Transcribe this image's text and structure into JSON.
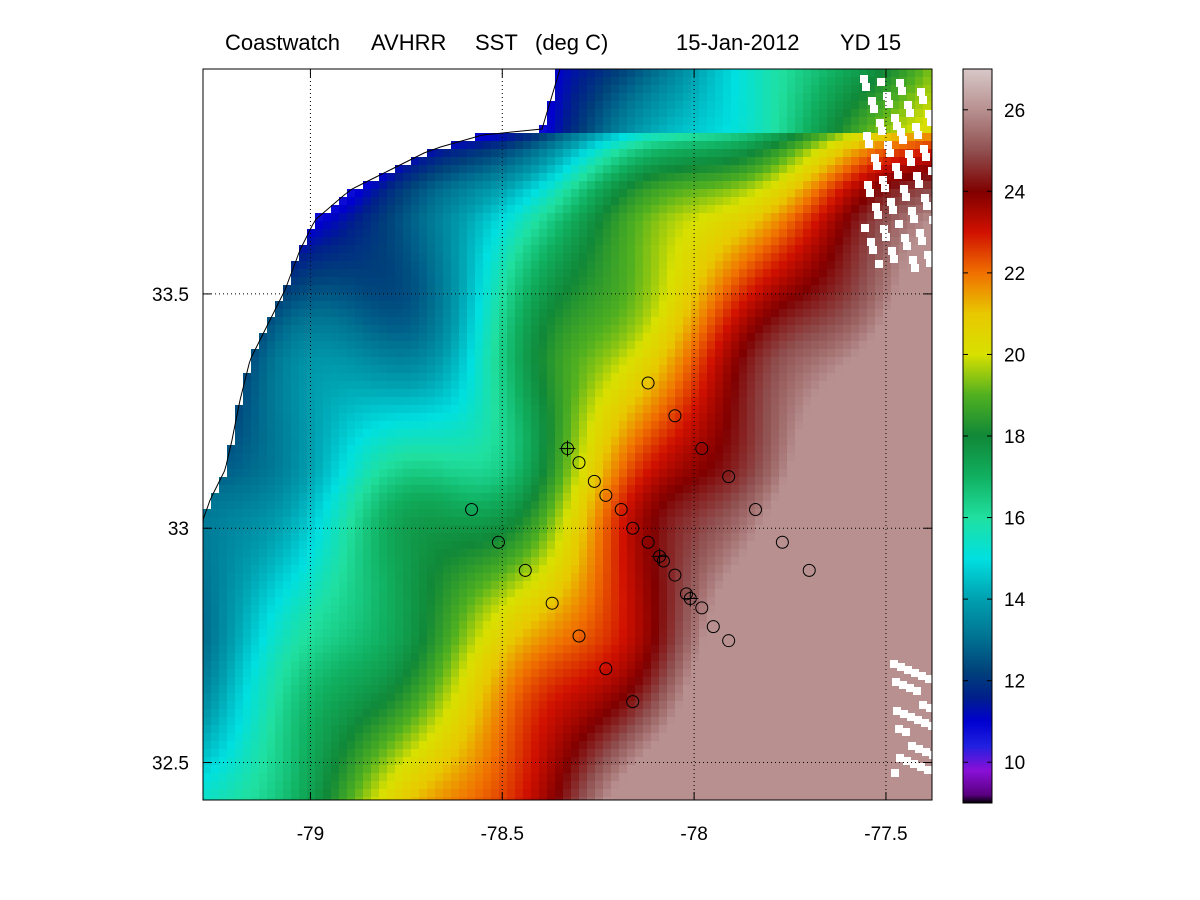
{
  "title": {
    "source": "Coastwatch",
    "sensor": "AVHRR",
    "product": "SST",
    "units": "(deg C)",
    "date": "15-Jan-2012",
    "yearday": "YD 15"
  },
  "colors": {
    "land": "#ffffff",
    "coastline": "#000000",
    "cloud": "#ffffff",
    "station_marker": "#000000",
    "frame": "#000000"
  },
  "chart_data": {
    "type": "heatmap",
    "title": "Coastwatch  AVHRR  SST  (deg C)        15-Jan-2012     YD 15",
    "xlabel": "",
    "ylabel": "",
    "xlim": [
      -79.28,
      -77.38
    ],
    "ylim": [
      32.42,
      33.98
    ],
    "x_ticks": [
      -79,
      -78.5,
      -78,
      -77.5
    ],
    "x_tick_labels": [
      "-79",
      "-78.5",
      "-78",
      "-77.5"
    ],
    "y_ticks": [
      32.5,
      33,
      33.5
    ],
    "y_tick_labels": [
      "32.5",
      "33",
      "33.5"
    ],
    "grid": "dotted",
    "colorbar": {
      "vmin": 9,
      "vmax": 27,
      "ticks": [
        10,
        12,
        14,
        16,
        18,
        20,
        22,
        24,
        26
      ],
      "tick_labels": [
        "10",
        "12",
        "14",
        "16",
        "18",
        "20",
        "22",
        "24",
        "26"
      ],
      "colormap": [
        [
          9.0,
          "#000000"
        ],
        [
          9.2,
          "#5a0080"
        ],
        [
          9.8,
          "#8a10d8"
        ],
        [
          10.4,
          "#2020e0"
        ],
        [
          11.0,
          "#0000d0"
        ],
        [
          11.6,
          "#00208a"
        ],
        [
          12.2,
          "#00407a"
        ],
        [
          13.0,
          "#006f90"
        ],
        [
          14.0,
          "#00a0b0"
        ],
        [
          15.0,
          "#00e0e0"
        ],
        [
          16.0,
          "#20e0a0"
        ],
        [
          17.0,
          "#10b060"
        ],
        [
          18.0,
          "#108838"
        ],
        [
          19.0,
          "#50b020"
        ],
        [
          20.0,
          "#d8e000"
        ],
        [
          21.0,
          "#e8c800"
        ],
        [
          22.0,
          "#f07000"
        ],
        [
          23.0,
          "#d01000"
        ],
        [
          24.0,
          "#800000"
        ],
        [
          25.0,
          "#905050"
        ],
        [
          26.0,
          "#b89090"
        ],
        [
          27.0,
          "#d8c8c8"
        ]
      ]
    },
    "stations": [
      {
        "lon": -78.12,
        "lat": 33.31,
        "marker": "circle"
      },
      {
        "lon": -78.05,
        "lat": 33.24,
        "marker": "circle"
      },
      {
        "lon": -77.98,
        "lat": 33.17,
        "marker": "circle"
      },
      {
        "lon": -77.91,
        "lat": 33.11,
        "marker": "circle"
      },
      {
        "lon": -77.84,
        "lat": 33.04,
        "marker": "circle"
      },
      {
        "lon": -77.77,
        "lat": 32.97,
        "marker": "circle"
      },
      {
        "lon": -77.7,
        "lat": 32.91,
        "marker": "circle"
      },
      {
        "lon": -78.58,
        "lat": 33.04,
        "marker": "circle"
      },
      {
        "lon": -78.51,
        "lat": 32.97,
        "marker": "circle"
      },
      {
        "lon": -78.44,
        "lat": 32.91,
        "marker": "circle"
      },
      {
        "lon": -78.37,
        "lat": 32.84,
        "marker": "circle"
      },
      {
        "lon": -78.3,
        "lat": 32.77,
        "marker": "circle"
      },
      {
        "lon": -78.23,
        "lat": 32.7,
        "marker": "circle"
      },
      {
        "lon": -78.16,
        "lat": 32.63,
        "marker": "circle"
      },
      {
        "lon": -78.33,
        "lat": 33.17,
        "marker": "circle-cross"
      },
      {
        "lon": -78.3,
        "lat": 33.14,
        "marker": "circle"
      },
      {
        "lon": -78.26,
        "lat": 33.1,
        "marker": "circle"
      },
      {
        "lon": -78.23,
        "lat": 33.07,
        "marker": "circle"
      },
      {
        "lon": -78.19,
        "lat": 33.04,
        "marker": "circle"
      },
      {
        "lon": -78.16,
        "lat": 33.0,
        "marker": "circle"
      },
      {
        "lon": -78.12,
        "lat": 32.97,
        "marker": "circle"
      },
      {
        "lon": -78.09,
        "lat": 32.94,
        "marker": "circle-cross"
      },
      {
        "lon": -78.08,
        "lat": 32.93,
        "marker": "circle"
      },
      {
        "lon": -78.05,
        "lat": 32.9,
        "marker": "circle"
      },
      {
        "lon": -78.02,
        "lat": 32.86,
        "marker": "circle"
      },
      {
        "lon": -78.01,
        "lat": 32.85,
        "marker": "circle-cross"
      },
      {
        "lon": -77.98,
        "lat": 32.83,
        "marker": "circle"
      },
      {
        "lon": -77.95,
        "lat": 32.79,
        "marker": "circle"
      },
      {
        "lon": -77.91,
        "lat": 32.76,
        "marker": "circle"
      }
    ]
  }
}
